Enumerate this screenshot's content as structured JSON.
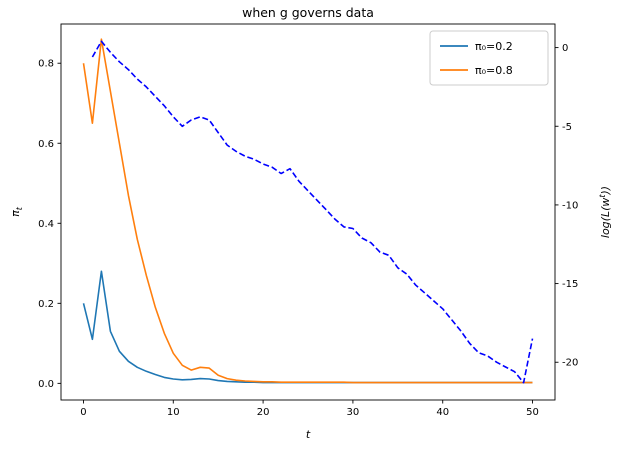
{
  "title": "when g governs data",
  "axes": {
    "xlabel": "t",
    "x_ticks": [
      0,
      10,
      20,
      30,
      40,
      50
    ],
    "left": {
      "label": "π_t",
      "tick_labels": [
        "0.0",
        "0.2",
        "0.4",
        "0.6",
        "0.8"
      ],
      "tick_values": [
        0.0,
        0.2,
        0.4,
        0.6,
        0.8
      ]
    },
    "right": {
      "label": "log(L(w^t))",
      "tick_labels": [
        "0",
        "-5",
        "-10",
        "-15",
        "-20"
      ],
      "tick_values": [
        0,
        -5,
        -10,
        -15,
        -20
      ]
    }
  },
  "legend": {
    "position": "upper right",
    "items": [
      {
        "label": "π₀=0.2",
        "color": "#1f77b4"
      },
      {
        "label": "π₀=0.8",
        "color": "#ff7f0e"
      }
    ]
  },
  "colors": {
    "series_pi02": "#1f77b4",
    "series_pi08": "#ff7f0e",
    "series_loglik": "#0000ff",
    "spine": "#000000",
    "legend_border": "#cccccc"
  },
  "chart_data": {
    "type": "line",
    "title": "when g governs data",
    "xlabel": "t",
    "ylabel_left": "π_t",
    "ylabel_right": "log(L(w^t))",
    "xlim": [
      -2.5,
      52.5
    ],
    "ylim_left": [
      -0.0416,
      0.898
    ],
    "ylim_right": [
      -22.4,
      1.5
    ],
    "grid": false,
    "legend_position": "upper right",
    "series": [
      {
        "name": "π₀=0.2",
        "axis": "left",
        "color": "#1f77b4",
        "style": "solid",
        "x": [
          0,
          1,
          2,
          3,
          4,
          5,
          6,
          7,
          8,
          9,
          10,
          11,
          12,
          13,
          14,
          15,
          16,
          17,
          18,
          19,
          20,
          21,
          22,
          23,
          24,
          25,
          26,
          27,
          28,
          29,
          30,
          31,
          32,
          33,
          34,
          35,
          36,
          37,
          38,
          39,
          40,
          41,
          42,
          43,
          44,
          45,
          46,
          47,
          48,
          49,
          50
        ],
        "y": [
          0.2,
          0.11,
          0.28,
          0.13,
          0.08,
          0.055,
          0.04,
          0.03,
          0.022,
          0.015,
          0.011,
          0.009,
          0.01,
          0.012,
          0.011,
          0.007,
          0.005,
          0.004,
          0.003,
          0.003,
          0.002,
          0.002,
          0.002,
          0.002,
          0.002,
          0.002,
          0.002,
          0.002,
          0.002,
          0.002,
          0.002,
          0.002,
          0.002,
          0.002,
          0.002,
          0.002,
          0.002,
          0.002,
          0.002,
          0.002,
          0.002,
          0.002,
          0.002,
          0.002,
          0.002,
          0.002,
          0.002,
          0.002,
          0.002,
          0.002,
          0.002
        ]
      },
      {
        "name": "π₀=0.8",
        "axis": "left",
        "color": "#ff7f0e",
        "style": "solid",
        "x": [
          0,
          1,
          2,
          3,
          4,
          5,
          6,
          7,
          8,
          9,
          10,
          11,
          12,
          13,
          14,
          15,
          16,
          17,
          18,
          19,
          20,
          21,
          22,
          23,
          24,
          25,
          26,
          27,
          28,
          29,
          30,
          31,
          32,
          33,
          34,
          35,
          36,
          37,
          38,
          39,
          40,
          41,
          42,
          43,
          44,
          45,
          46,
          47,
          48,
          49,
          50
        ],
        "y": [
          0.8,
          0.65,
          0.86,
          0.73,
          0.6,
          0.47,
          0.36,
          0.27,
          0.19,
          0.125,
          0.075,
          0.045,
          0.033,
          0.04,
          0.038,
          0.02,
          0.012,
          0.008,
          0.006,
          0.005,
          0.004,
          0.004,
          0.003,
          0.003,
          0.003,
          0.003,
          0.003,
          0.003,
          0.003,
          0.003,
          0.002,
          0.002,
          0.002,
          0.002,
          0.002,
          0.002,
          0.002,
          0.002,
          0.002,
          0.002,
          0.002,
          0.002,
          0.002,
          0.002,
          0.002,
          0.002,
          0.002,
          0.002,
          0.002,
          0.002,
          0.002
        ]
      },
      {
        "name": "log(L(w^t))",
        "axis": "right",
        "color": "#0000ff",
        "style": "dashed",
        "x": [
          1,
          2,
          3,
          4,
          5,
          6,
          7,
          8,
          9,
          10,
          11,
          12,
          13,
          14,
          15,
          16,
          17,
          18,
          19,
          20,
          21,
          22,
          23,
          24,
          25,
          26,
          27,
          28,
          29,
          30,
          31,
          32,
          33,
          34,
          35,
          36,
          37,
          38,
          39,
          40,
          41,
          42,
          43,
          44,
          45,
          46,
          47,
          48,
          49,
          50
        ],
        "y": [
          -0.6,
          0.4,
          -0.3,
          -0.9,
          -1.4,
          -2.0,
          -2.5,
          -3.1,
          -3.7,
          -4.4,
          -5.0,
          -4.6,
          -4.4,
          -4.6,
          -5.4,
          -6.2,
          -6.6,
          -6.9,
          -7.1,
          -7.4,
          -7.6,
          -8.0,
          -7.7,
          -8.5,
          -9.1,
          -9.7,
          -10.3,
          -10.9,
          -11.4,
          -11.5,
          -12.1,
          -12.4,
          -13.0,
          -13.2,
          -14.0,
          -14.4,
          -15.1,
          -15.6,
          -16.1,
          -16.6,
          -17.3,
          -18.0,
          -18.8,
          -19.4,
          -19.6,
          -20.0,
          -20.3,
          -20.6,
          -21.3,
          -18.5
        ]
      }
    ]
  }
}
